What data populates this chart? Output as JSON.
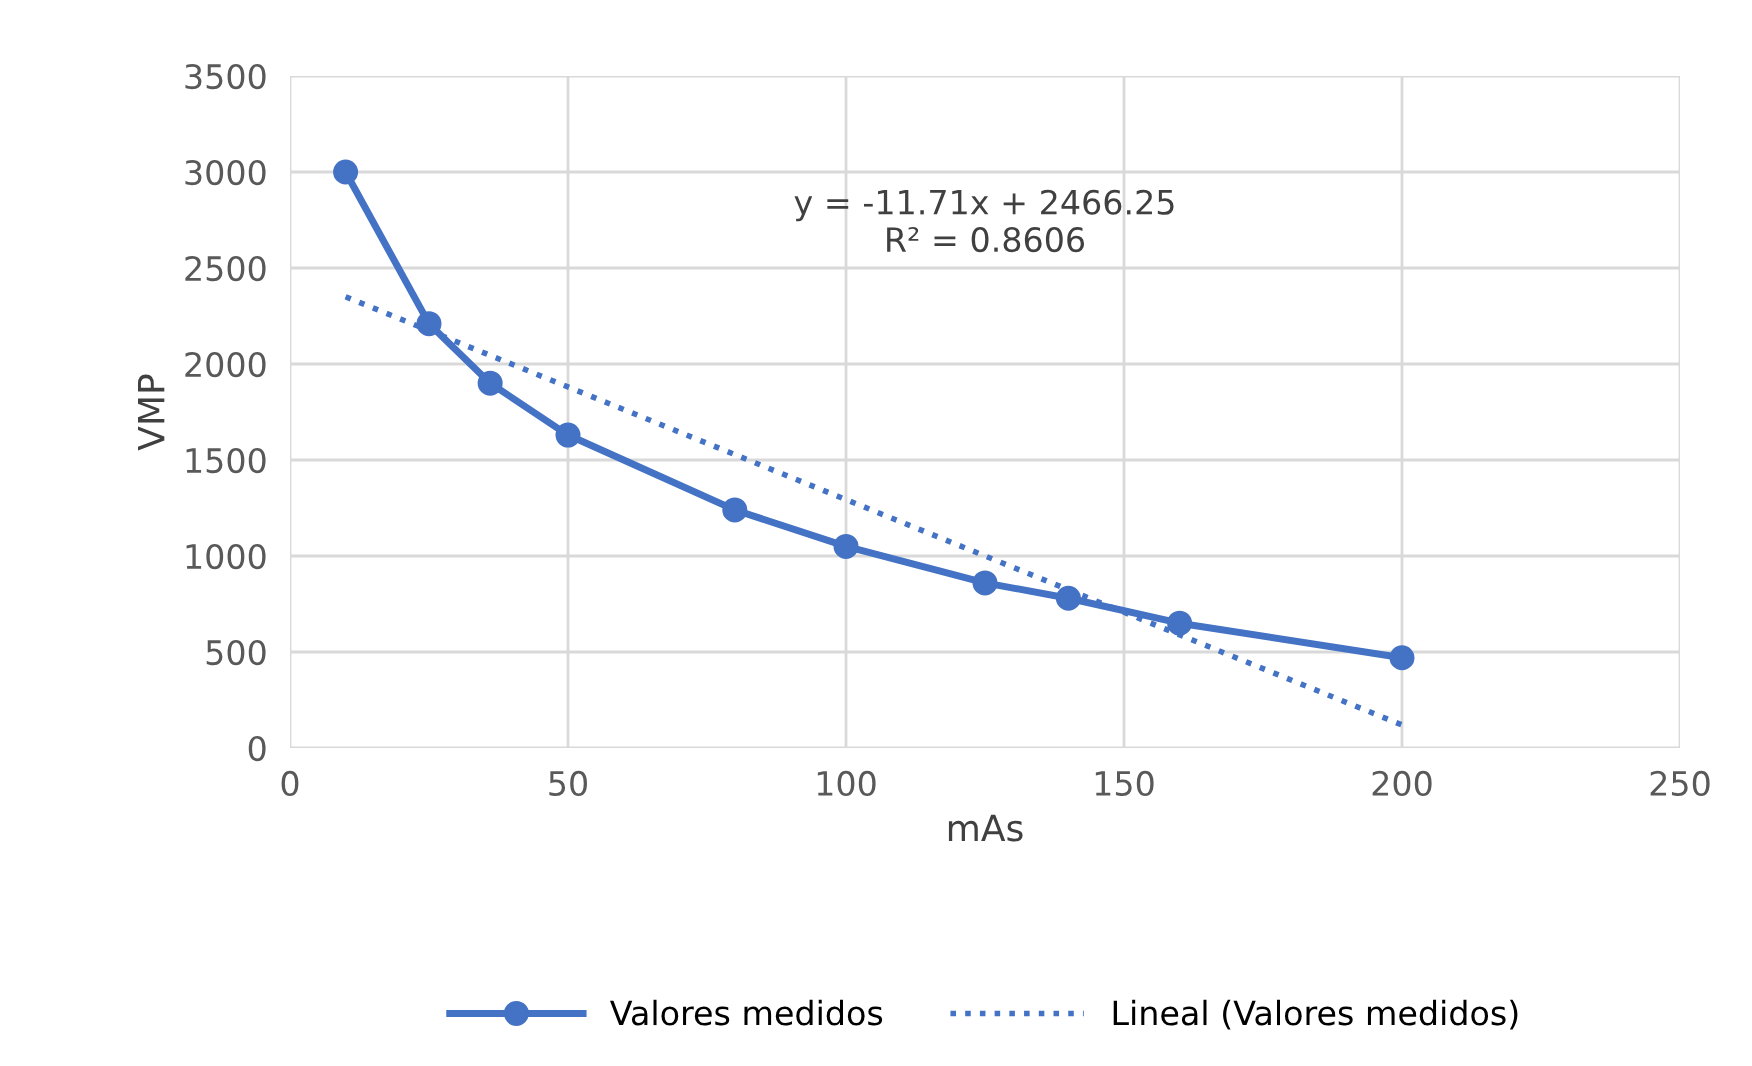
{
  "chart_data": {
    "type": "line",
    "xlabel": "mAs",
    "ylabel": "VMP",
    "xlim": [
      0,
      250
    ],
    "xticks": [
      0,
      50,
      100,
      150,
      200,
      250
    ],
    "ylim": [
      0,
      3500
    ],
    "yticks": [
      0,
      500,
      1000,
      1500,
      2000,
      2500,
      3000,
      3500
    ],
    "grid": true,
    "legend": "bottom",
    "series": [
      {
        "name": "Valores medidos",
        "color": "#4472c4",
        "marker": "circle",
        "line_style": "solid",
        "x": [
          10,
          25,
          36,
          50,
          80,
          100,
          125,
          140,
          160,
          200
        ],
        "values": [
          3000,
          2210,
          1900,
          1630,
          1240,
          1050,
          860,
          780,
          650,
          470
        ]
      },
      {
        "name": "Lineal (Valores medidos)",
        "color": "#4472c4",
        "marker": "none",
        "line_style": "dotted",
        "x": [
          10,
          200
        ],
        "values": [
          2350,
          120
        ]
      }
    ],
    "annotations": [
      "y = -11.71x + 2466.25\nR² = 0.8606"
    ]
  }
}
